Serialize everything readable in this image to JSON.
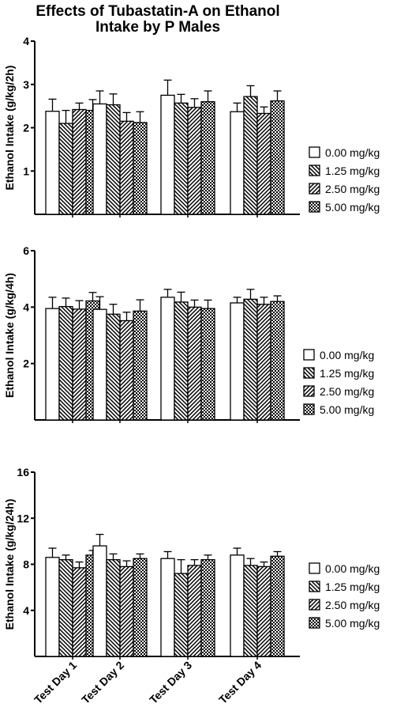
{
  "figure": {
    "title_line1": "Effects of Tubastatin-A on Ethanol",
    "title_line2": "Intake by P Males"
  },
  "chart_data": [
    {
      "type": "bar",
      "ylabel": "Ethanol Intake  (g/kg/2h)",
      "ylim": [
        0,
        4
      ],
      "yticks": [
        1,
        2,
        3,
        4
      ],
      "categories": [
        "Test Day 1",
        "Test Day 2",
        "Test Day 3",
        "Test Day 4"
      ],
      "error_bars": "SEM",
      "legend_position": "right",
      "series": [
        {
          "name": "0.00 mg/kg",
          "pattern": "open",
          "values": [
            2.38,
            2.55,
            2.75,
            2.37
          ],
          "errors": [
            0.28,
            0.3,
            0.35,
            0.2
          ]
        },
        {
          "name": "1.25 mg/kg",
          "pattern": "diagonal-back",
          "values": [
            2.1,
            2.53,
            2.57,
            2.72
          ],
          "errors": [
            0.3,
            0.25,
            0.2,
            0.25
          ]
        },
        {
          "name": "2.50 mg/kg",
          "pattern": "diagonal-forward",
          "values": [
            2.42,
            2.15,
            2.47,
            2.33
          ],
          "errors": [
            0.15,
            0.2,
            0.2,
            0.15
          ]
        },
        {
          "name": "5.00 mg/kg",
          "pattern": "checker",
          "values": [
            2.4,
            2.12,
            2.6,
            2.62
          ],
          "errors": [
            0.25,
            0.25,
            0.25,
            0.23
          ]
        }
      ]
    },
    {
      "type": "bar",
      "ylabel": "Ethanol Intake  (g/kg/4h)",
      "ylim": [
        0,
        6
      ],
      "yticks": [
        2,
        4,
        6
      ],
      "categories": [
        "Test Day 1",
        "Test Day 2",
        "Test Day 3",
        "Test Day 4"
      ],
      "error_bars": "SEM",
      "legend_position": "right",
      "series": [
        {
          "name": "0.00 mg/kg",
          "pattern": "open",
          "values": [
            3.95,
            3.92,
            4.35,
            4.15
          ],
          "errors": [
            0.4,
            0.45,
            0.28,
            0.2
          ]
        },
        {
          "name": "1.25 mg/kg",
          "pattern": "diagonal-back",
          "values": [
            4.02,
            3.75,
            4.18,
            4.28
          ],
          "errors": [
            0.3,
            0.35,
            0.35,
            0.35
          ]
        },
        {
          "name": "2.50 mg/kg",
          "pattern": "diagonal-forward",
          "values": [
            3.93,
            3.52,
            4.0,
            4.1
          ],
          "errors": [
            0.3,
            0.3,
            0.25,
            0.25
          ]
        },
        {
          "name": "5.00 mg/kg",
          "pattern": "checker",
          "values": [
            4.22,
            3.86,
            3.95,
            4.2
          ],
          "errors": [
            0.3,
            0.4,
            0.3,
            0.2
          ]
        }
      ]
    },
    {
      "type": "bar",
      "ylabel": "Ethanol Intake  (g/kg/24h)",
      "ylim": [
        0,
        16
      ],
      "yticks": [
        4,
        8,
        12,
        16
      ],
      "categories": [
        "Test Day 1",
        "Test Day 2",
        "Test Day 3",
        "Test Day 4"
      ],
      "error_bars": "SEM",
      "legend_position": "right",
      "series": [
        {
          "name": "0.00 mg/kg",
          "pattern": "open",
          "values": [
            8.6,
            9.6,
            8.5,
            8.8
          ],
          "errors": [
            0.8,
            1.0,
            0.6,
            0.6
          ]
        },
        {
          "name": "1.25 mg/kg",
          "pattern": "diagonal-back",
          "values": [
            8.4,
            8.4,
            7.2,
            7.9
          ],
          "errors": [
            0.4,
            0.5,
            1.2,
            0.6
          ]
        },
        {
          "name": "2.50 mg/kg",
          "pattern": "diagonal-forward",
          "values": [
            7.7,
            7.8,
            7.9,
            7.8
          ],
          "errors": [
            0.5,
            0.5,
            0.5,
            0.4
          ]
        },
        {
          "name": "5.00 mg/kg",
          "pattern": "checker",
          "values": [
            8.8,
            8.5,
            8.4,
            8.7
          ],
          "errors": [
            0.4,
            0.4,
            0.4,
            0.4
          ]
        }
      ]
    }
  ]
}
